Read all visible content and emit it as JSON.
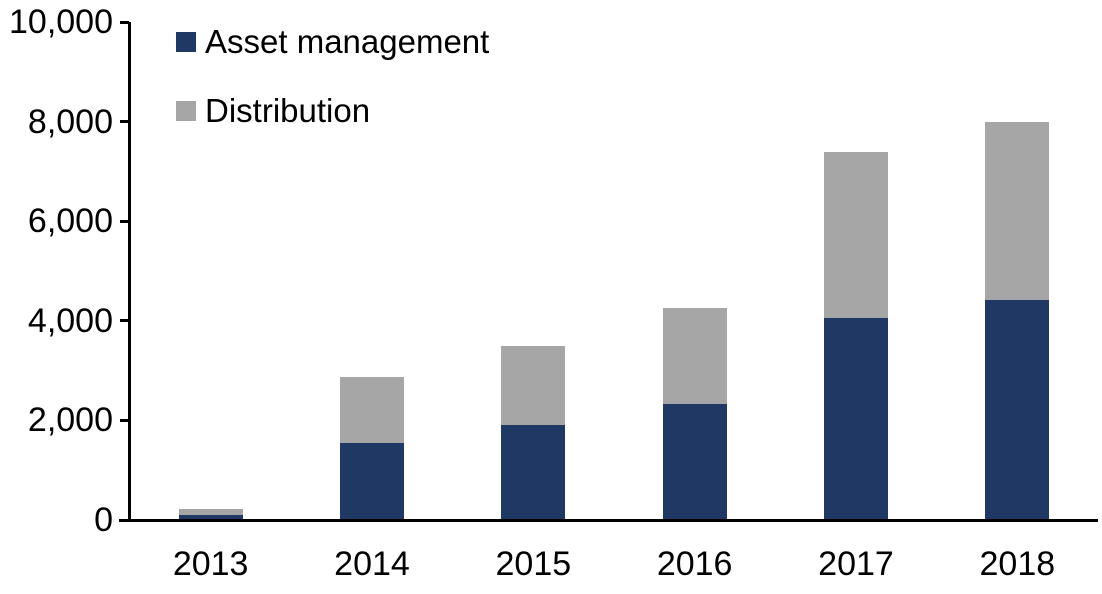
{
  "chart_data": {
    "type": "bar",
    "stacked": true,
    "title": "",
    "xlabel": "",
    "ylabel": "",
    "grid": false,
    "legend_position": "top-left",
    "categories": [
      "2013",
      "2014",
      "2015",
      "2016",
      "2017",
      "2018"
    ],
    "series": [
      {
        "name": "Asset management",
        "color": "#1F3864",
        "values": [
          110,
          1550,
          1900,
          2320,
          4050,
          4420
        ]
      },
      {
        "name": "Distribution",
        "color": "#A6A6A6",
        "values": [
          110,
          1320,
          1600,
          1930,
          3330,
          3580
        ]
      }
    ],
    "ylim": [
      0,
      10000
    ],
    "y_tick_values": [
      0,
      2000,
      4000,
      6000,
      8000,
      10000
    ],
    "y_tick_labels": [
      "0",
      "2,000",
      "4,000",
      "6,000",
      "8,000",
      "10,000"
    ],
    "axis_color": "#000000"
  }
}
